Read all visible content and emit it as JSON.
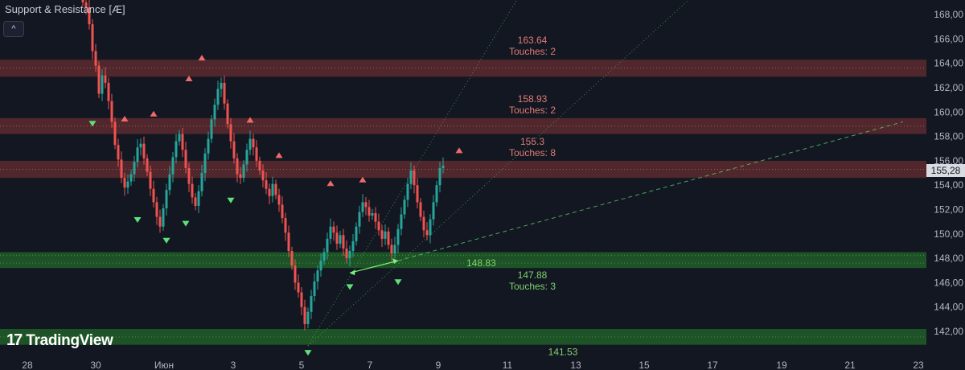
{
  "indicator": {
    "title": "Support & Resistance [Æ]",
    "collapse_glyph": "^"
  },
  "brand": {
    "name": "TradingView",
    "mark": "17"
  },
  "colors": {
    "background": "#131722",
    "candle_up": "#26a69a",
    "candle_down": "#ef5350",
    "resistance_zone": "#5c2a2e",
    "resistance_line": "#e36b6b",
    "resistance_text": "#e07b73",
    "support_zone": "#1f5a27",
    "support_line": "#4caf50",
    "support_text": "#7ed36b",
    "pivot_high": "#ef6a6a",
    "pivot_low": "#5fe07a",
    "axis_text": "#b2b5be"
  },
  "chart_data": {
    "type": "candlestick",
    "symbol_price": "155,28",
    "y_ticks": [
      "142,00",
      "144,00",
      "146,00",
      "148,00",
      "150,00",
      "152,00",
      "154,00",
      "156,00",
      "158,00",
      "160,00",
      "162,00",
      "164,00",
      "166,00",
      "168,00"
    ],
    "x_ticks": [
      "28",
      "30",
      "Июн",
      "3",
      "5",
      "7",
      "9",
      "11",
      "13",
      "15",
      "17",
      "19",
      "21",
      "23"
    ],
    "resistance_levels": [
      {
        "price_label": "163.64",
        "touches_label": "Touches: 2",
        "low": 162.9,
        "high": 164.3
      },
      {
        "price_label": "158.93",
        "touches_label": "Touches: 2",
        "low": 158.2,
        "high": 159.5
      },
      {
        "price_label": "155.3",
        "touches_label": "Touches: 8",
        "low": 154.6,
        "high": 156.0
      }
    ],
    "support_levels": [
      {
        "price_label": "148.83",
        "touches_label": "",
        "low": 148.0,
        "high": 148.5
      },
      {
        "price_label": "147.88",
        "touches_label": "Touches: 3",
        "low": 147.2,
        "high": 148.0
      },
      {
        "price_label": "141.53",
        "touches_label": "",
        "low": 140.9,
        "high": 142.2
      }
    ],
    "closes": [
      169.0,
      168.6,
      167.2,
      165.0,
      163.8,
      161.5,
      163.0,
      162.4,
      160.9,
      159.2,
      157.3,
      156.1,
      154.6,
      153.8,
      154.3,
      154.9,
      155.9,
      157.1,
      157.4,
      156.2,
      155.1,
      153.7,
      152.6,
      151.4,
      150.6,
      152.1,
      153.6,
      154.9,
      156.3,
      157.6,
      158.2,
      156.9,
      155.4,
      154.1,
      153.0,
      152.3,
      153.5,
      155.0,
      156.6,
      157.8,
      159.4,
      160.6,
      161.9,
      162.4,
      160.7,
      159.0,
      157.6,
      156.2,
      154.9,
      154.6,
      155.7,
      156.9,
      157.8,
      157.1,
      156.0,
      155.2,
      154.4,
      153.7,
      153.1,
      154.1,
      153.2,
      152.4,
      151.3,
      150.1,
      148.6,
      147.4,
      146.0,
      145.2,
      144.0,
      142.6,
      143.6,
      144.9,
      146.1,
      147.0,
      147.8,
      148.5,
      149.6,
      150.6,
      150.1,
      149.2,
      149.9,
      148.8,
      148.0,
      148.6,
      149.4,
      150.6,
      151.8,
      152.6,
      152.2,
      151.5,
      151.7,
      151.0,
      150.3,
      149.6,
      150.2,
      149.1,
      148.4,
      149.1,
      150.4,
      151.6,
      152.8,
      154.1,
      155.2,
      154.0,
      152.6,
      151.4,
      150.3,
      149.9,
      151.2,
      152.6,
      154.0,
      155.4,
      155.6
    ],
    "pivot_highs": [
      {
        "index": 13,
        "price": 158.9
      },
      {
        "index": 22,
        "price": 159.3
      },
      {
        "index": 33,
        "price": 162.2
      },
      {
        "index": 37,
        "price": 163.9
      },
      {
        "index": 52,
        "price": 158.8
      },
      {
        "index": 61,
        "price": 155.9
      },
      {
        "index": 77,
        "price": 153.6
      },
      {
        "index": 87,
        "price": 153.9
      },
      {
        "index": 117,
        "price": 156.3
      }
    ],
    "pivot_lows": [
      {
        "index": 3,
        "price": 159.6
      },
      {
        "index": 17,
        "price": 151.7
      },
      {
        "index": 26,
        "price": 150.0
      },
      {
        "index": 32,
        "price": 151.4
      },
      {
        "index": 46,
        "price": 153.3
      },
      {
        "index": 70,
        "price": 140.8
      },
      {
        "index": 83,
        "price": 146.2
      },
      {
        "index": 98,
        "price": 146.6
      }
    ],
    "trend_arrow": {
      "from": {
        "index": 83,
        "price": 146.8
      },
      "to": {
        "index": 98,
        "price": 147.8
      }
    },
    "trendlines": [
      {
        "style": "dotted",
        "from": {
          "index": 70,
          "price": 140.8
        },
        "to": {
          "index": 155,
          "price": 178
        }
      },
      {
        "style": "dotted",
        "from": {
          "index": 70,
          "price": 140.8
        },
        "to": {
          "index": 225,
          "price": 178
        }
      },
      {
        "style": "dashed",
        "from": {
          "index": 98,
          "price": 147.8
        },
        "to": {
          "index": 255,
          "price": 159.2
        }
      }
    ]
  }
}
